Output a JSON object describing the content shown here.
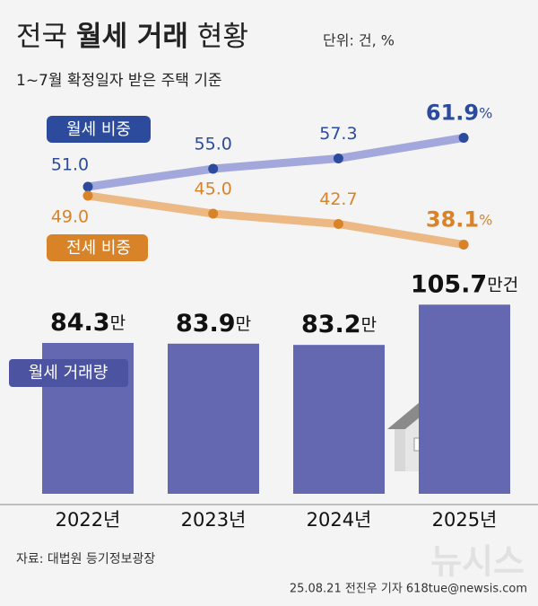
{
  "chart_data": {
    "title": [
      "전국",
      "월세 거래",
      "현황"
    ],
    "unit_note": "단위: 건, %",
    "subtitle": "1~7월 확정일자 받은 주택 기준",
    "categories": [
      "2022년",
      "2023년",
      "2024년",
      "2025년"
    ],
    "charts": [
      {
        "type": "line",
        "series": [
          {
            "name": "월세 비중",
            "color": "#2c4b9c",
            "line_color": "#a3a8dc",
            "values": [
              51.0,
              55.0,
              57.3,
              61.9
            ],
            "value_labels": [
              "51.0",
              "55.0",
              "57.3",
              "61.9%"
            ]
          },
          {
            "name": "전세 비중",
            "color": "#d98329",
            "line_color": "#ecb985",
            "values": [
              49.0,
              45.0,
              42.7,
              38.1
            ],
            "value_labels": [
              "49.0",
              "45.0",
              "42.7",
              "38.1%"
            ]
          }
        ]
      },
      {
        "type": "bar",
        "series": [
          {
            "name": "월세 거래량",
            "color": "#6368b1",
            "values": [
              84.3,
              83.9,
              83.2,
              105.7
            ],
            "value_labels": [
              "84.3만",
              "83.9만",
              "83.2만",
              "105.7만건"
            ]
          }
        ]
      }
    ],
    "source": "자료: 대법원 등기정보광장",
    "credit": "25.08.21 전진우 기자 618tue@newsis.com",
    "watermark": "뉴시스"
  }
}
